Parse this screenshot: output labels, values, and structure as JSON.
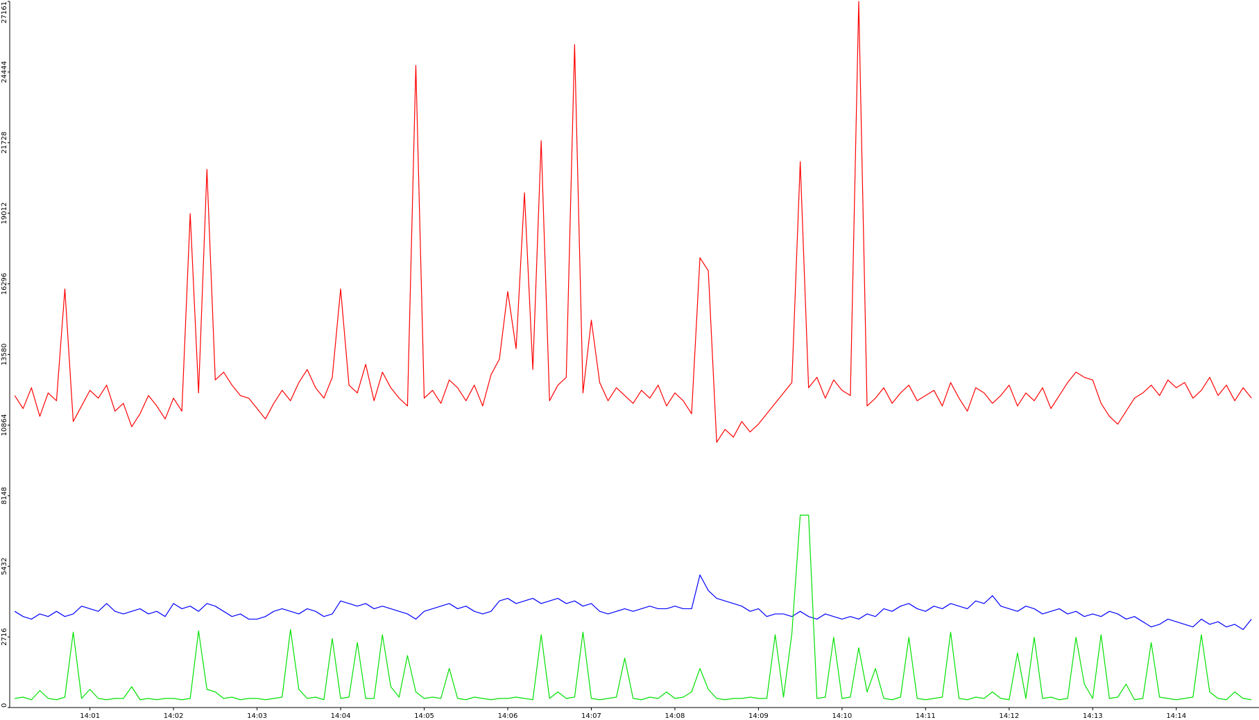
{
  "chart_data": {
    "type": "line",
    "xlim": [
      0.04,
      14.99
    ],
    "ylim": [
      0,
      27161
    ],
    "yticks": [
      0,
      2716,
      5432,
      8148,
      10864,
      13580,
      16296,
      19012,
      21728,
      24444,
      27161
    ],
    "xticks": [
      {
        "value": 1,
        "label": "14:01"
      },
      {
        "value": 2,
        "label": "14:02"
      },
      {
        "value": 3,
        "label": "14:03"
      },
      {
        "value": 4,
        "label": "14:04"
      },
      {
        "value": 5,
        "label": "14:05"
      },
      {
        "value": 6,
        "label": "14:06"
      },
      {
        "value": 7,
        "label": "14:07"
      },
      {
        "value": 8,
        "label": "14:08"
      },
      {
        "value": 9,
        "label": "14:09"
      },
      {
        "value": 10,
        "label": "14:10"
      },
      {
        "value": 11,
        "label": "14:11"
      },
      {
        "value": 12,
        "label": "14:12"
      },
      {
        "value": 13,
        "label": "14:13"
      },
      {
        "value": 14,
        "label": "14:14"
      }
    ],
    "x": [
      0.1,
      0.2,
      0.3,
      0.4,
      0.5,
      0.6,
      0.7,
      0.8,
      0.9,
      1.0,
      1.1,
      1.2,
      1.3,
      1.4,
      1.5,
      1.6,
      1.7,
      1.8,
      1.9,
      2.0,
      2.1,
      2.2,
      2.3,
      2.4,
      2.5,
      2.6,
      2.7,
      2.8,
      2.9,
      3.0,
      3.1,
      3.2,
      3.3,
      3.4,
      3.5,
      3.6,
      3.7,
      3.8,
      3.9,
      4.0,
      4.1,
      4.2,
      4.3,
      4.4,
      4.5,
      4.6,
      4.7,
      4.8,
      4.9,
      5.0,
      5.1,
      5.2,
      5.3,
      5.4,
      5.5,
      5.6,
      5.7,
      5.8,
      5.9,
      6.0,
      6.1,
      6.2,
      6.3,
      6.4,
      6.5,
      6.6,
      6.7,
      6.8,
      6.9,
      7.0,
      7.1,
      7.2,
      7.3,
      7.4,
      7.5,
      7.6,
      7.7,
      7.8,
      7.9,
      8.0,
      8.1,
      8.2,
      8.3,
      8.4,
      8.5,
      8.6,
      8.7,
      8.8,
      8.9,
      9.0,
      9.1,
      9.2,
      9.3,
      9.4,
      9.5,
      9.6,
      9.7,
      9.8,
      9.9,
      10.0,
      10.1,
      10.2,
      10.3,
      10.4,
      10.5,
      10.6,
      10.7,
      10.8,
      10.9,
      11.0,
      11.1,
      11.2,
      11.3,
      11.4,
      11.5,
      11.6,
      11.7,
      11.8,
      11.9,
      12.0,
      12.1,
      12.2,
      12.3,
      12.4,
      12.5,
      12.6,
      12.7,
      12.8,
      12.9,
      13.0,
      13.1,
      13.2,
      13.3,
      13.4,
      13.5,
      13.6,
      13.7,
      13.8,
      13.9,
      14.0,
      14.1,
      14.2,
      14.3,
      14.4,
      14.5,
      14.6,
      14.7,
      14.8,
      14.9
    ],
    "series": [
      {
        "color": "#ff0000",
        "values": [
          12000,
          11500,
          12300,
          11200,
          12100,
          11800,
          16100,
          11000,
          11600,
          12200,
          11900,
          12400,
          11400,
          11700,
          10800,
          11300,
          12000,
          11600,
          11100,
          11900,
          11400,
          19000,
          12100,
          20700,
          12600,
          12900,
          12400,
          12000,
          11900,
          11500,
          11100,
          11700,
          12200,
          11800,
          12500,
          13000,
          12300,
          11900,
          12700,
          16100,
          12400,
          12100,
          13200,
          11800,
          12900,
          12300,
          11900,
          11600,
          24700,
          11900,
          12200,
          11700,
          12600,
          12300,
          11800,
          12400,
          11600,
          12800,
          13400,
          16000,
          13800,
          19800,
          13000,
          21800,
          11800,
          12400,
          12700,
          25500,
          12100,
          14900,
          12500,
          11800,
          12300,
          12000,
          11700,
          12200,
          11900,
          12400,
          11600,
          12100,
          11800,
          11300,
          17300,
          16800,
          10200,
          10700,
          10400,
          11000,
          10600,
          10900,
          11300,
          11700,
          12100,
          12500,
          21000,
          12300,
          12700,
          11900,
          12600,
          12200,
          12000,
          27161,
          11600,
          11900,
          12300,
          11700,
          12100,
          12400,
          11800,
          12000,
          12200,
          11600,
          12500,
          11900,
          11400,
          12300,
          12100,
          11700,
          12000,
          12400,
          11600,
          12100,
          11800,
          12300,
          11500,
          12000,
          12500,
          12900,
          12700,
          12600,
          11700,
          11200,
          10900,
          11400,
          11900,
          12100,
          12400,
          12000,
          12600,
          12300,
          12500,
          11900,
          12200,
          12700,
          12000,
          12400,
          11800,
          12300,
          11900
        ]
      },
      {
        "color": "#0000ff",
        "values": [
          3700,
          3500,
          3400,
          3600,
          3500,
          3700,
          3500,
          3600,
          3900,
          3800,
          3700,
          4000,
          3700,
          3600,
          3700,
          3800,
          3600,
          3700,
          3500,
          4000,
          3800,
          3900,
          3700,
          4000,
          3900,
          3700,
          3500,
          3600,
          3400,
          3400,
          3500,
          3700,
          3800,
          3700,
          3600,
          3800,
          3700,
          3500,
          3600,
          4100,
          4000,
          3900,
          4000,
          3800,
          3900,
          3800,
          3700,
          3600,
          3400,
          3700,
          3800,
          3900,
          4000,
          3800,
          3900,
          3700,
          3600,
          3700,
          4100,
          4200,
          4000,
          4100,
          4200,
          4000,
          4100,
          4200,
          4000,
          4100,
          3900,
          4000,
          3700,
          3600,
          3700,
          3800,
          3700,
          3800,
          3900,
          3800,
          3800,
          3900,
          3800,
          3800,
          5100,
          4500,
          4200,
          4100,
          4000,
          3900,
          3700,
          3800,
          3500,
          3600,
          3600,
          3500,
          3700,
          3500,
          3400,
          3600,
          3500,
          3400,
          3500,
          3400,
          3600,
          3500,
          3800,
          3700,
          3900,
          4000,
          3800,
          3700,
          3900,
          3800,
          4000,
          3900,
          3800,
          4100,
          4000,
          4300,
          3900,
          3800,
          3700,
          3900,
          3800,
          3600,
          3700,
          3800,
          3600,
          3700,
          3500,
          3600,
          3500,
          3700,
          3600,
          3400,
          3500,
          3300,
          3100,
          3200,
          3400,
          3300,
          3200,
          3100,
          3400,
          3200,
          3300,
          3100,
          3200,
          3000,
          3400
        ]
      },
      {
        "color": "#00e000",
        "values": [
          350,
          400,
          300,
          650,
          350,
          300,
          400,
          2900,
          350,
          700,
          350,
          300,
          350,
          350,
          800,
          300,
          350,
          300,
          350,
          350,
          300,
          350,
          2950,
          700,
          600,
          350,
          400,
          300,
          350,
          350,
          300,
          350,
          400,
          3000,
          700,
          350,
          400,
          300,
          2650,
          350,
          400,
          2500,
          350,
          350,
          2800,
          800,
          400,
          2000,
          600,
          350,
          400,
          350,
          1500,
          350,
          300,
          400,
          350,
          300,
          350,
          350,
          400,
          350,
          300,
          2800,
          350,
          600,
          350,
          400,
          2900,
          350,
          300,
          350,
          400,
          1900,
          350,
          300,
          400,
          350,
          600,
          350,
          400,
          600,
          1500,
          700,
          350,
          300,
          350,
          350,
          400,
          350,
          350,
          2800,
          400,
          2850,
          7400,
          7400,
          350,
          400,
          2700,
          350,
          400,
          2300,
          600,
          1500,
          350,
          300,
          400,
          2700,
          350,
          300,
          350,
          400,
          2900,
          350,
          300,
          400,
          350,
          600,
          350,
          300,
          2100,
          350,
          2700,
          350,
          400,
          300,
          350,
          2700,
          900,
          350,
          2800,
          350,
          400,
          900,
          300,
          350,
          2500,
          400,
          350,
          300,
          350,
          400,
          2800,
          600,
          350,
          300,
          600,
          350,
          300
        ]
      }
    ]
  }
}
